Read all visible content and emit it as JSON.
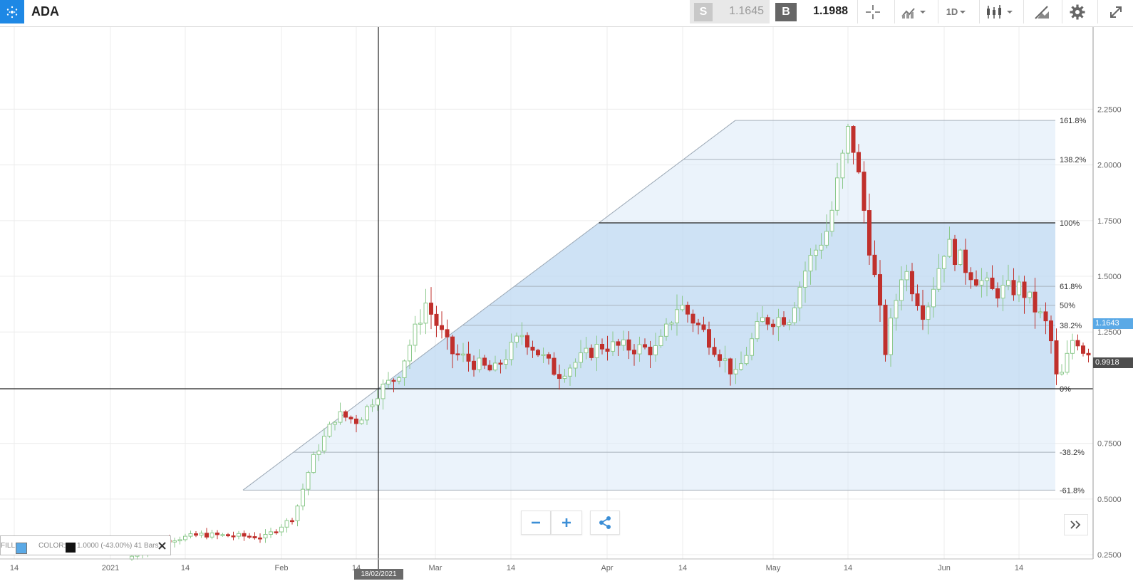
{
  "toolbar": {
    "symbol": "ADA",
    "sell_label": "S",
    "sell_price": "1.1645",
    "buy_label": "B",
    "buy_price": "1.1988",
    "timeframe": "1D",
    "icons": [
      "cardano-logo-icon",
      "crosshair-icon",
      "indicators-icon",
      "timeframe-chevron-icon",
      "candlestick-icon",
      "drawing-tools-icon",
      "gear-icon",
      "fullscreen-icon"
    ]
  },
  "colors": {
    "up": "#8cc98c",
    "down": "#c0302c",
    "fib_fill": "#5aa0e6",
    "accent": "#3b8ed6",
    "price_badge": "#5aa9e6"
  },
  "chart_data": {
    "type": "candlestick",
    "price_axis": [
      "2.2500",
      "2.0000",
      "1.7500",
      "1.5000",
      "1.2500",
      "0.7500",
      "0.5000",
      "0.2500"
    ],
    "x_labels": [
      "14",
      "2021",
      "14",
      "Feb",
      "14",
      "Mar",
      "14",
      "Apr",
      "14",
      "May",
      "14",
      "Jun",
      "14"
    ],
    "current_price": "1.1643",
    "crosshair_price": "0.9918",
    "crosshair_date": "18/02/2021",
    "fibonacci_levels": [
      {
        "label": "161.8%",
        "value": 2.2
      },
      {
        "label": "138.2%",
        "value": 2.025
      },
      {
        "label": "100%",
        "value": 1.74
      },
      {
        "label": "61.8%",
        "value": 1.455
      },
      {
        "label": "50%",
        "value": 1.37
      },
      {
        "label": "38.2%",
        "value": 1.28
      },
      {
        "label": "0%",
        "value": 0.995
      },
      {
        "label": "-38.2%",
        "value": 0.71
      },
      {
        "label": "-61.8%",
        "value": 0.54
      }
    ]
  },
  "drawing": {
    "fill_label": "FILL:",
    "color_label": "COLOR:",
    "info": "1.0000 (-43.00%) 41 Bars",
    "fill_color": "#5aa9e6",
    "line_color": "#111111"
  }
}
